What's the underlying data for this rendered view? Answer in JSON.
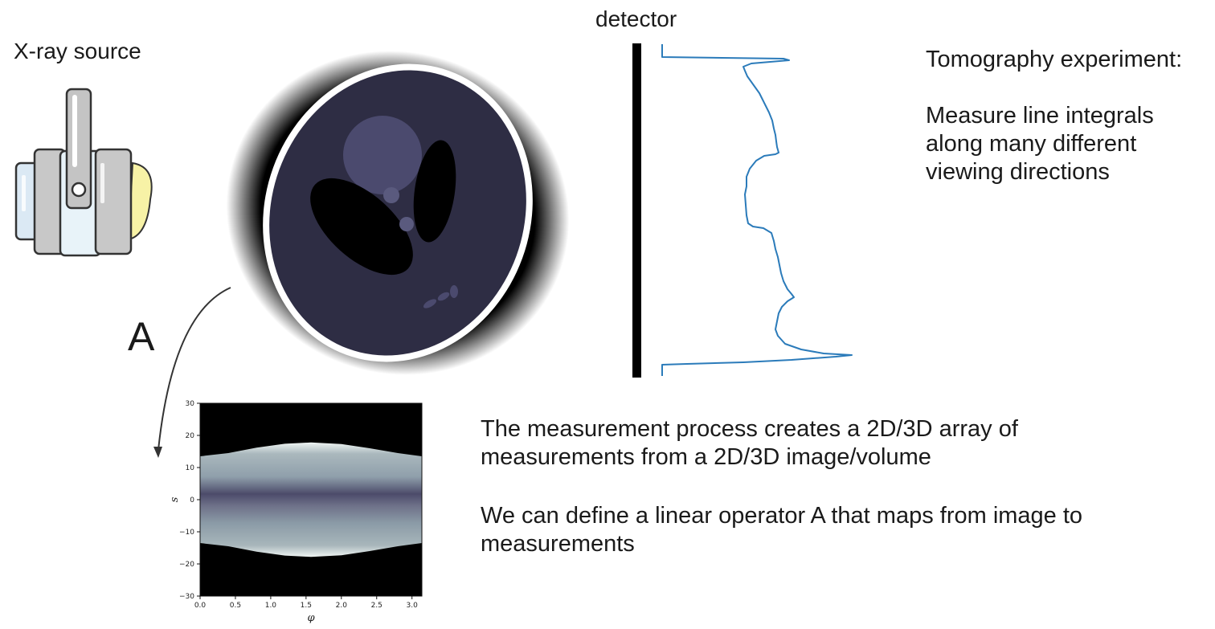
{
  "source_label": "X-ray source",
  "detector_label": "detector",
  "operator_label": "A",
  "explanation": {
    "heading": "Tomography experiment:",
    "body_lines": [
      "Measure line integrals",
      "along many different",
      "viewing directions"
    ]
  },
  "description": {
    "p1_lines": [
      "The measurement process creates a 2D/3D array of",
      "measurements from a 2D/3D image/volume"
    ],
    "p2_lines": [
      "We can define a linear operator A that maps from image to",
      "measurements"
    ]
  },
  "icons": {
    "source": "xray-tube-icon",
    "phantom": "shepp-logan-phantom-image",
    "arrow": "curved-arrow-icon"
  },
  "colors": {
    "profile_line": "#2b7bba",
    "phantom_fill": "#2e2d44",
    "phantom_rim": "#ffffff",
    "sinogram_bg": "#000000"
  },
  "chart_data": {
    "type": "heatmap",
    "xlabel": "φ",
    "ylabel": "s",
    "xlim": [
      0.0,
      3.14
    ],
    "ylim": [
      -30,
      30
    ],
    "xticks": [
      "0.0",
      "0.5",
      "1.0",
      "1.5",
      "2.0",
      "2.5",
      "3.0"
    ],
    "yticks": [
      "30",
      "20",
      "10",
      "0",
      "−10",
      "−20",
      "−30"
    ],
    "upper_boundary": {
      "phi": [
        0,
        0.4,
        0.8,
        1.2,
        1.57,
        2.0,
        2.4,
        2.8,
        3.14
      ],
      "s": [
        13.5,
        14.5,
        16.2,
        17.4,
        17.8,
        17.3,
        16.0,
        14.5,
        13.5
      ]
    },
    "lower_boundary": {
      "phi": [
        0,
        0.4,
        0.8,
        1.2,
        1.57,
        2.0,
        2.4,
        2.8,
        3.14
      ],
      "s": [
        -13.5,
        -14.5,
        -16.2,
        -17.4,
        -17.8,
        -17.3,
        -16.0,
        -14.5,
        -13.5
      ]
    }
  }
}
